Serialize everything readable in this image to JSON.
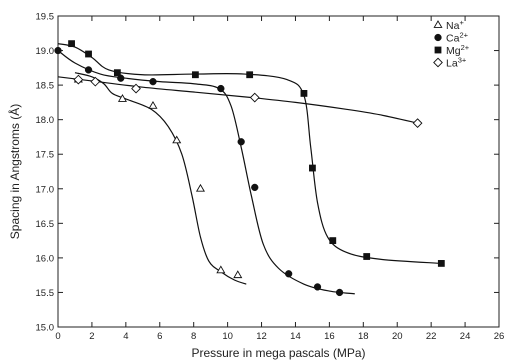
{
  "chart_data": {
    "type": "scatter",
    "xlabel": "Pressure in mega pascals (MPa)",
    "ylabel": "Spacing in Angstroms (Å)",
    "xlim": [
      0,
      26
    ],
    "ylim": [
      15.0,
      19.5
    ],
    "xticks": [
      "0",
      "2",
      "4",
      "6",
      "8",
      "10",
      "12",
      "14",
      "16",
      "18",
      "20",
      "22",
      "24",
      "26"
    ],
    "yticks": [
      "15.0",
      "15.5",
      "16.0",
      "16.5",
      "17.0",
      "17.5",
      "18.0",
      "18.5",
      "19.0",
      "19.5"
    ],
    "grid": false,
    "legend_position": "top-right",
    "series": [
      {
        "name": "Na",
        "charge": "+",
        "marker": "triangle-open",
        "points": [
          [
            1.2,
            18.58
          ],
          [
            3.8,
            18.3
          ],
          [
            5.6,
            18.2
          ],
          [
            7.0,
            17.7
          ],
          [
            8.4,
            17.0
          ],
          [
            9.6,
            15.82
          ],
          [
            10.6,
            15.75
          ]
        ],
        "curve": [
          [
            1.0,
            18.68
          ],
          [
            2.0,
            18.62
          ],
          [
            2.7,
            18.52
          ],
          [
            3.2,
            18.38
          ],
          [
            4.0,
            18.3
          ],
          [
            5.5,
            18.15
          ],
          [
            6.5,
            17.9
          ],
          [
            7.3,
            17.5
          ],
          [
            7.9,
            16.9
          ],
          [
            8.4,
            16.3
          ],
          [
            8.9,
            15.95
          ],
          [
            9.6,
            15.8
          ],
          [
            10.4,
            15.68
          ],
          [
            11.1,
            15.62
          ]
        ]
      },
      {
        "name": "Ca",
        "charge": "2+",
        "marker": "circle-filled",
        "points": [
          [
            0.0,
            19.0
          ],
          [
            1.8,
            18.72
          ],
          [
            3.7,
            18.6
          ],
          [
            5.6,
            18.55
          ],
          [
            9.6,
            18.45
          ],
          [
            10.8,
            17.68
          ],
          [
            11.6,
            17.02
          ],
          [
            13.6,
            15.77
          ],
          [
            15.3,
            15.58
          ],
          [
            16.6,
            15.5
          ]
        ],
        "curve": [
          [
            0.0,
            19.0
          ],
          [
            1.0,
            18.82
          ],
          [
            2.5,
            18.66
          ],
          [
            4.0,
            18.6
          ],
          [
            6.0,
            18.55
          ],
          [
            8.0,
            18.52
          ],
          [
            9.5,
            18.45
          ],
          [
            10.2,
            18.2
          ],
          [
            10.8,
            17.6
          ],
          [
            11.4,
            16.9
          ],
          [
            12.1,
            16.2
          ],
          [
            13.0,
            15.85
          ],
          [
            14.5,
            15.62
          ],
          [
            16.0,
            15.52
          ],
          [
            17.5,
            15.48
          ]
        ]
      },
      {
        "name": "Mg",
        "charge": "2+",
        "marker": "square-filled",
        "points": [
          [
            0.8,
            19.1
          ],
          [
            1.8,
            18.95
          ],
          [
            3.5,
            18.68
          ],
          [
            8.1,
            18.65
          ],
          [
            11.3,
            18.65
          ],
          [
            14.5,
            18.38
          ],
          [
            15.0,
            17.3
          ],
          [
            16.2,
            16.25
          ],
          [
            18.2,
            16.02
          ],
          [
            22.6,
            15.92
          ]
        ],
        "curve": [
          [
            0.0,
            19.1
          ],
          [
            1.0,
            19.05
          ],
          [
            2.0,
            18.9
          ],
          [
            3.0,
            18.72
          ],
          [
            5.0,
            18.65
          ],
          [
            8.0,
            18.66
          ],
          [
            11.0,
            18.66
          ],
          [
            13.5,
            18.58
          ],
          [
            14.5,
            18.35
          ],
          [
            14.9,
            17.6
          ],
          [
            15.3,
            16.8
          ],
          [
            15.9,
            16.3
          ],
          [
            17.0,
            16.08
          ],
          [
            19.0,
            15.98
          ],
          [
            22.6,
            15.92
          ]
        ]
      },
      {
        "name": "La",
        "charge": "3+",
        "marker": "diamond-open",
        "points": [
          [
            1.2,
            18.58
          ],
          [
            2.2,
            18.55
          ],
          [
            4.6,
            18.45
          ],
          [
            11.6,
            18.32
          ],
          [
            21.2,
            17.95
          ]
        ],
        "curve": [
          [
            0.0,
            18.62
          ],
          [
            2.0,
            18.56
          ],
          [
            5.0,
            18.47
          ],
          [
            8.0,
            18.4
          ],
          [
            11.0,
            18.33
          ],
          [
            14.0,
            18.25
          ],
          [
            17.0,
            18.15
          ],
          [
            19.0,
            18.07
          ],
          [
            21.2,
            17.95
          ]
        ]
      }
    ]
  }
}
